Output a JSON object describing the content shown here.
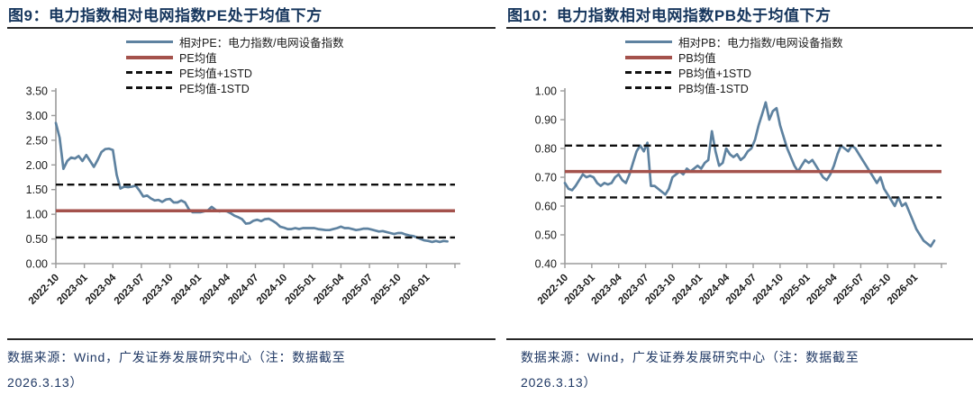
{
  "colors": {
    "title_navy": "#16365D",
    "source_navy": "#1F3864",
    "series_blue": "#5E82A0",
    "mean_red": "#A4524C",
    "std_dashed_black": "#0d0d0d",
    "axis_gray": "#9B9B9B"
  },
  "source_note": {
    "line1": "数据来源：Wind，广发证券发展研究中心（注：数据截至",
    "line2": "2026.3.13）"
  },
  "chart_data": [
    {
      "type": "line",
      "title": "图9：电力指数相对电网指数PE处于均值下方",
      "legend": [
        "相对PE：电力指数/电网设备指数",
        "PE均值",
        "PE均值+1STD",
        "PE均值-1STD"
      ],
      "legend_position": "top-center",
      "grid": false,
      "ylim": [
        0.0,
        3.5
      ],
      "ytick_labels": [
        "0.00",
        "0.50",
        "1.00",
        "1.50",
        "2.00",
        "2.50",
        "3.00",
        "3.50"
      ],
      "x_tick_labels": [
        "2022-10",
        "2023-01",
        "2023-04",
        "2023-07",
        "2023-10",
        "2024-01",
        "2024-04",
        "2024-07",
        "2024-10",
        "2025-01",
        "2025-04",
        "2025-07",
        "2025-10",
        "2026-01"
      ],
      "x_months_per_tick": 3,
      "x_axis_span_months": 42,
      "mean": 1.07,
      "std_plus": 1.6,
      "std_minus": 0.53,
      "series": [
        {
          "name": "相对PE：电力指数/电网设备指数",
          "x_start_month": 0,
          "x_step_months": 0.4,
          "values": [
            2.85,
            2.55,
            1.92,
            2.08,
            2.15,
            2.13,
            2.18,
            2.08,
            2.2,
            2.08,
            1.96,
            2.1,
            2.26,
            2.32,
            2.33,
            2.3,
            1.8,
            1.52,
            1.56,
            1.55,
            1.56,
            1.58,
            1.48,
            1.36,
            1.38,
            1.32,
            1.28,
            1.29,
            1.25,
            1.3,
            1.31,
            1.24,
            1.24,
            1.28,
            1.24,
            1.1,
            1.04,
            1.04,
            1.04,
            1.06,
            1.08,
            1.15,
            1.09,
            1.06,
            1.07,
            1.06,
            1.02,
            0.97,
            0.94,
            0.9,
            0.81,
            0.82,
            0.87,
            0.89,
            0.86,
            0.9,
            0.91,
            0.87,
            0.82,
            0.75,
            0.73,
            0.7,
            0.7,
            0.72,
            0.7,
            0.72,
            0.72,
            0.72,
            0.72,
            0.7,
            0.69,
            0.68,
            0.68,
            0.7,
            0.72,
            0.75,
            0.72,
            0.72,
            0.7,
            0.68,
            0.69,
            0.71,
            0.71,
            0.69,
            0.67,
            0.65,
            0.66,
            0.64,
            0.62,
            0.6,
            0.62,
            0.62,
            0.59,
            0.57,
            0.56,
            0.53,
            0.5,
            0.47,
            0.46,
            0.44,
            0.46,
            0.44,
            0.46,
            0.45
          ]
        }
      ]
    },
    {
      "type": "line",
      "title": "图10：电力指数相对电网指数PB处于均值下方",
      "legend": [
        "相对PB：电力指数/电网设备指数",
        "PB均值",
        "PB均值+1STD",
        "PB均值-1STD"
      ],
      "legend_position": "top-center",
      "grid": false,
      "ylim": [
        0.4,
        1.0
      ],
      "ytick_labels": [
        "0.40",
        "0.50",
        "0.60",
        "0.70",
        "0.80",
        "0.90",
        "1.00"
      ],
      "x_tick_labels": [
        "2022-10",
        "2023-01",
        "2023-04",
        "2023-07",
        "2023-10",
        "2024-01",
        "2024-04",
        "2024-07",
        "2024-10",
        "2025-01",
        "2025-04",
        "2025-07",
        "2025-10",
        "2026-01"
      ],
      "x_months_per_tick": 3,
      "x_axis_span_months": 42,
      "mean": 0.72,
      "std_plus": 0.81,
      "std_minus": 0.63,
      "series": [
        {
          "name": "相对PB：电力指数/电网设备指数",
          "x_start_month": 0,
          "x_step_months": 0.4,
          "values": [
            0.68,
            0.66,
            0.655,
            0.67,
            0.69,
            0.71,
            0.7,
            0.705,
            0.7,
            0.68,
            0.67,
            0.68,
            0.675,
            0.68,
            0.7,
            0.71,
            0.69,
            0.68,
            0.71,
            0.75,
            0.79,
            0.81,
            0.79,
            0.82,
            0.67,
            0.67,
            0.66,
            0.65,
            0.64,
            0.66,
            0.7,
            0.71,
            0.72,
            0.71,
            0.73,
            0.72,
            0.73,
            0.74,
            0.73,
            0.75,
            0.76,
            0.86,
            0.79,
            0.74,
            0.75,
            0.8,
            0.78,
            0.77,
            0.78,
            0.76,
            0.77,
            0.79,
            0.8,
            0.83,
            0.88,
            0.92,
            0.96,
            0.9,
            0.93,
            0.94,
            0.88,
            0.84,
            0.8,
            0.77,
            0.74,
            0.72,
            0.74,
            0.76,
            0.75,
            0.76,
            0.74,
            0.72,
            0.7,
            0.69,
            0.71,
            0.74,
            0.78,
            0.81,
            0.8,
            0.79,
            0.81,
            0.8,
            0.78,
            0.76,
            0.74,
            0.72,
            0.7,
            0.68,
            0.7,
            0.66,
            0.64,
            0.62,
            0.6,
            0.63,
            0.6,
            0.61,
            0.58,
            0.55,
            0.52,
            0.5,
            0.48,
            0.47,
            0.46,
            0.48
          ]
        }
      ]
    }
  ]
}
